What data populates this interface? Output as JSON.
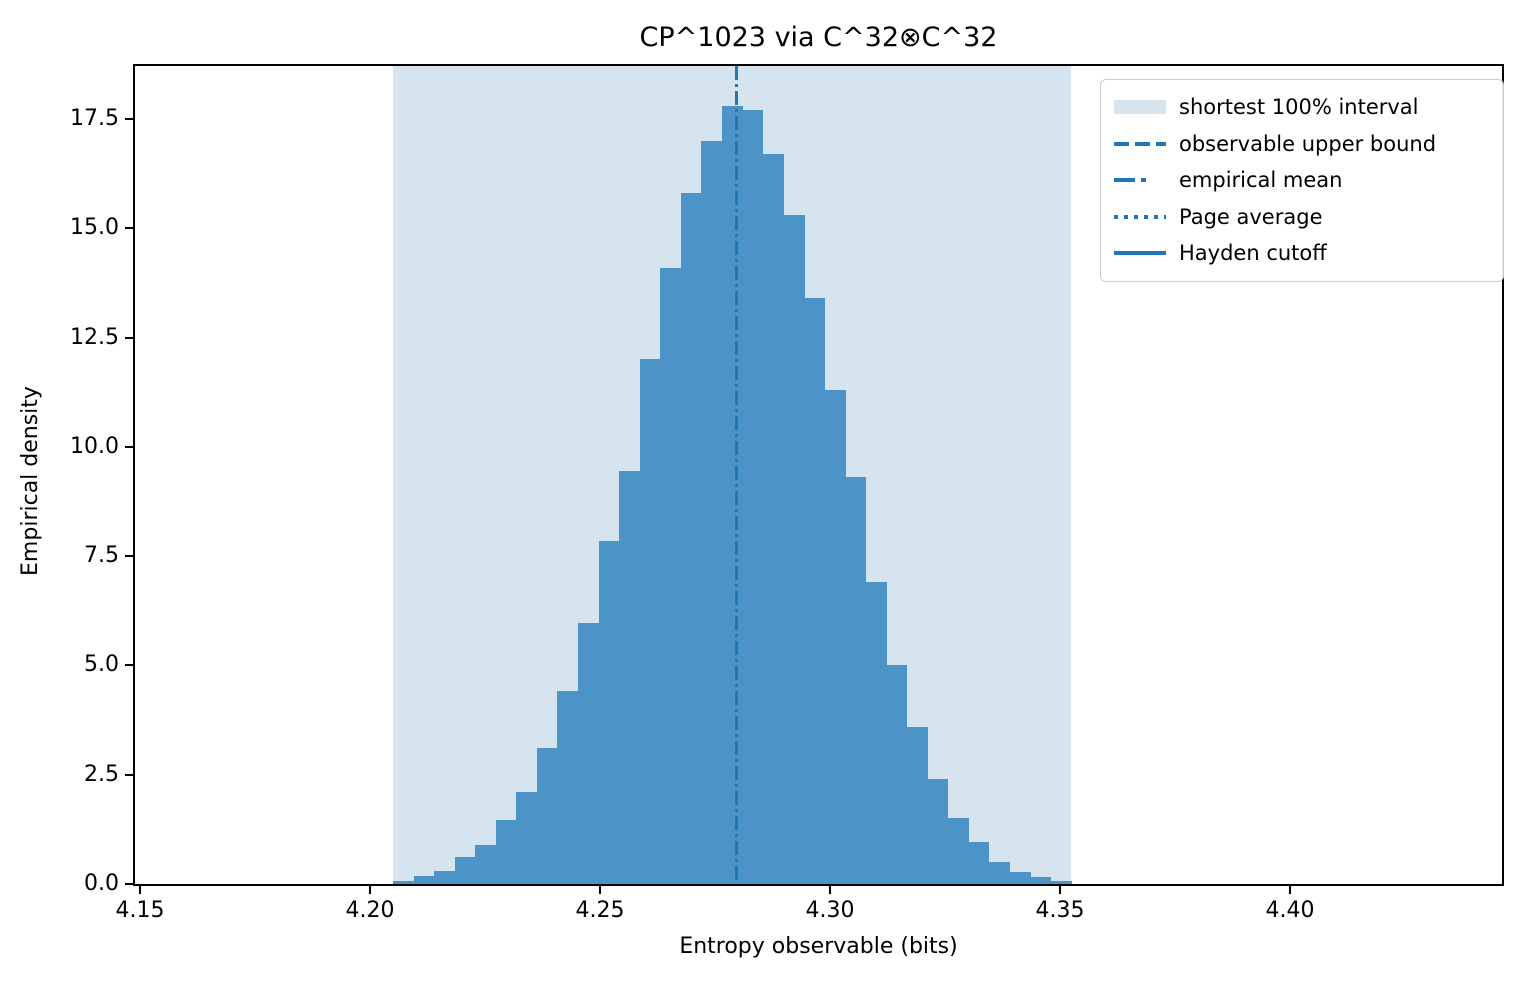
{
  "chart_data": {
    "type": "bar",
    "subtype": "histogram",
    "title": "CP^1023 via C^32⊗C^32",
    "xlabel": "Entropy observable (bits)",
    "ylabel": "Empirical density",
    "xlim": [
      4.1489,
      4.4461
    ],
    "ylim": [
      0,
      18.71
    ],
    "grid": false,
    "xtick_values": [
      4.15,
      4.2,
      4.25,
      4.3,
      4.35,
      4.4
    ],
    "xtick_labels": [
      "4.15",
      "4.20",
      "4.25",
      "4.30",
      "4.35",
      "4.40"
    ],
    "ytick_values": [
      0,
      2.5,
      5,
      7.5,
      10,
      12.5,
      15,
      17.5
    ],
    "ytick_labels": [
      "0.0",
      "2.5",
      "5.0",
      "7.5",
      "10.0",
      "12.5",
      "15.0",
      "17.5"
    ],
    "histogram": {
      "bin_start": 4.205,
      "bin_width": 0.004467,
      "densities": [
        0.07,
        0.18,
        0.3,
        0.62,
        0.9,
        1.46,
        2.1,
        3.1,
        4.42,
        5.97,
        7.85,
        9.45,
        12.0,
        14.1,
        15.8,
        17.0,
        17.8,
        17.7,
        16.7,
        15.3,
        13.4,
        11.3,
        9.3,
        6.9,
        5.0,
        3.6,
        2.4,
        1.5,
        0.95,
        0.51,
        0.28,
        0.15,
        0.06
      ]
    },
    "shaded_interval": {
      "label": "shortest 100% interval",
      "x0": 4.205,
      "x1": 4.3524
    },
    "vlines": [
      {
        "label": "empirical mean",
        "style": "dashdot",
        "x": 4.2796
      }
    ],
    "legend": {
      "position": "upper right",
      "items": [
        {
          "label": "shortest 100% interval",
          "marker": "patch"
        },
        {
          "label": "observable upper bound",
          "marker": "dashed-line"
        },
        {
          "label": "empirical mean",
          "marker": "dashdot-line"
        },
        {
          "label": "Page average",
          "marker": "dotted-line"
        },
        {
          "label": "Hayden cutoff",
          "marker": "solid-line"
        }
      ]
    },
    "colors": {
      "bar": "#4c93c7",
      "shade": "#d6e4f0",
      "line": "#1f77b4",
      "text": "#000000"
    }
  }
}
